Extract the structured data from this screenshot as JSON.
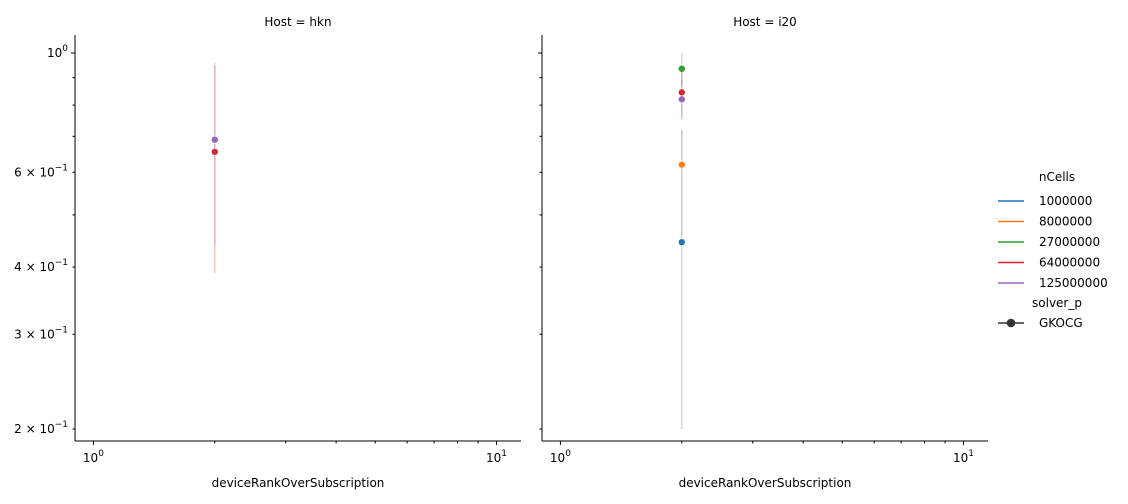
{
  "chart_data": {
    "type": "line",
    "x_axis_label": "deviceRankOverSubscription",
    "xscale": "log",
    "yscale": "log",
    "xlim": [
      0.9,
      11.5
    ],
    "ylim": [
      0.19,
      1.08
    ],
    "x_ticks": [
      {
        "value": 1,
        "base": "10",
        "exp": "0"
      },
      {
        "value": 10,
        "base": "10",
        "exp": "1"
      }
    ],
    "y_ticks": [
      {
        "value": 1.0,
        "mant": "",
        "base": "10",
        "exp": "0"
      },
      {
        "value": 0.6,
        "mant": "6 × ",
        "base": "10",
        "exp": "−1"
      },
      {
        "value": 0.4,
        "mant": "4 × ",
        "base": "10",
        "exp": "−1"
      },
      {
        "value": 0.3,
        "mant": "3 × ",
        "base": "10",
        "exp": "−1"
      },
      {
        "value": 0.2,
        "mant": "2 × ",
        "base": "10",
        "exp": "−1"
      }
    ],
    "legend": {
      "position": "right",
      "hue_title": "nCells",
      "hue_entries": [
        {
          "label": "1000000",
          "color": "#1f77b4"
        },
        {
          "label": "8000000",
          "color": "#ff7f0e"
        },
        {
          "label": "27000000",
          "color": "#2ca02c"
        },
        {
          "label": "64000000",
          "color": "#d62728"
        },
        {
          "label": "125000000",
          "color": "#9467bd"
        }
      ],
      "style_title": "solver_p",
      "style_entries": [
        {
          "label": "GKOCG",
          "color": "#333333"
        }
      ]
    },
    "panels": [
      {
        "title": "Host = hkn",
        "series": [
          {
            "nCells": "64000000",
            "color": "#d62728",
            "x": 2,
            "y": 0.655,
            "ci": [
              0.39,
              0.95
            ]
          },
          {
            "nCells": "125000000",
            "color": "#9467bd",
            "x": 2,
            "y": 0.69,
            "ci": [
              0.44,
              0.96
            ]
          }
        ]
      },
      {
        "title": "Host = i20",
        "series": [
          {
            "nCells": "1000000",
            "color": "#1f77b4",
            "x": 2,
            "y": 0.445,
            "ci": [
              0.2,
              0.72
            ]
          },
          {
            "nCells": "8000000",
            "color": "#ff7f0e",
            "x": 2,
            "y": 0.62,
            "ci": [
              0.46,
              0.72
            ]
          },
          {
            "nCells": "27000000",
            "color": "#2ca02c",
            "x": 2,
            "y": 0.935,
            "ci": [
              0.87,
              1.0
            ]
          },
          {
            "nCells": "64000000",
            "color": "#d62728",
            "x": 2,
            "y": 0.845,
            "ci": [
              0.76,
              0.93
            ]
          },
          {
            "nCells": "125000000",
            "color": "#9467bd",
            "x": 2,
            "y": 0.82,
            "ci": [
              0.75,
              0.89
            ]
          }
        ]
      }
    ]
  }
}
